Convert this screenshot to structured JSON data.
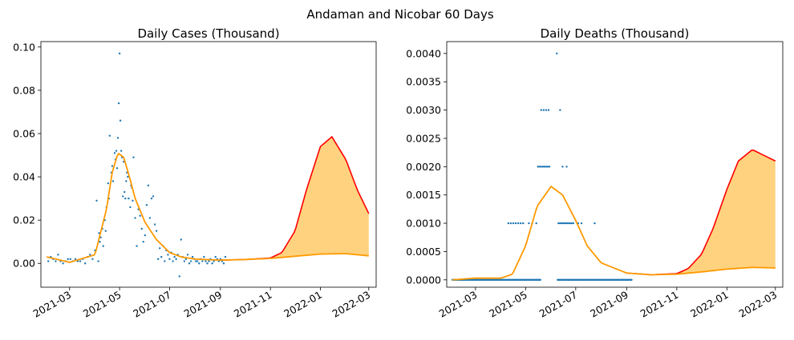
{
  "figure": {
    "title": "Andaman and Nicobar 60 Days"
  },
  "chart_data": [
    {
      "type": "scatter",
      "title": "Daily Cases (Thousand)",
      "xlabel": "",
      "ylabel": "",
      "xlim": [
        "2021-01-25",
        "2022-03-10"
      ],
      "ylim": [
        -0.011,
        0.1025
      ],
      "xticks": [
        "2021-03",
        "2021-05",
        "2021-07",
        "2021-09",
        "2021-11",
        "2022-01",
        "2022-03"
      ],
      "yticks": [
        "0.00",
        "0.02",
        "0.04",
        "0.06",
        "0.08",
        "0.10"
      ],
      "grid": false,
      "colors": {
        "points": "#1f77b4",
        "fit": "#ff9900",
        "upper": "#ff0000",
        "band": "#ffd27f"
      },
      "fit_x": [
        "2021-02-01",
        "2021-03-01",
        "2021-04-01",
        "2021-04-15",
        "2021-04-22",
        "2021-04-29",
        "2021-05-06",
        "2021-05-13",
        "2021-05-20",
        "2021-06-01",
        "2021-06-15",
        "2021-07-01",
        "2021-07-15",
        "2021-08-01",
        "2021-09-01",
        "2021-10-01",
        "2021-11-01",
        "2021-12-01",
        "2022-01-01",
        "2022-02-01",
        "2022-03-01"
      ],
      "fit_y": [
        0.003,
        0.0005,
        0.004,
        0.025,
        0.042,
        0.051,
        0.049,
        0.04,
        0.03,
        0.019,
        0.011,
        0.005,
        0.003,
        0.002,
        0.0015,
        0.0018,
        0.0023,
        0.0033,
        0.0043,
        0.0045,
        0.0035
      ],
      "upper_x": [
        "2021-09-01",
        "2021-10-01",
        "2021-11-01",
        "2021-11-15",
        "2021-12-01",
        "2021-12-15",
        "2022-01-01",
        "2022-01-15",
        "2022-02-01",
        "2022-02-15",
        "2022-03-01"
      ],
      "upper_y": [
        0.0015,
        0.0018,
        0.0025,
        0.005,
        0.015,
        0.034,
        0.054,
        0.0585,
        0.048,
        0.034,
        0.023
      ],
      "points": [
        [
          "2021-02-03",
          0.001
        ],
        [
          "2021-02-06",
          0.003
        ],
        [
          "2021-02-09",
          0.002
        ],
        [
          "2021-02-12",
          0.001
        ],
        [
          "2021-02-15",
          0.004
        ],
        [
          "2021-02-18",
          0.001
        ],
        [
          "2021-02-21",
          0.0
        ],
        [
          "2021-02-24",
          0.001
        ],
        [
          "2021-02-27",
          0.002
        ],
        [
          "2021-03-02",
          0.002
        ],
        [
          "2021-03-05",
          0.001
        ],
        [
          "2021-03-08",
          0.002
        ],
        [
          "2021-03-11",
          0.001
        ],
        [
          "2021-03-14",
          0.001
        ],
        [
          "2021-03-17",
          0.002
        ],
        [
          "2021-03-20",
          0.0
        ],
        [
          "2021-03-23",
          0.003
        ],
        [
          "2021-03-26",
          0.004
        ],
        [
          "2021-03-29",
          0.002
        ],
        [
          "2021-04-01",
          0.006
        ],
        [
          "2021-04-03",
          0.029
        ],
        [
          "2021-04-05",
          0.001
        ],
        [
          "2021-04-06",
          0.014
        ],
        [
          "2021-04-07",
          0.01
        ],
        [
          "2021-04-08",
          0.012
        ],
        [
          "2021-04-10",
          0.016
        ],
        [
          "2021-04-11",
          0.008
        ],
        [
          "2021-04-13",
          0.02
        ],
        [
          "2021-04-14",
          0.015
        ],
        [
          "2021-04-15",
          0.026
        ],
        [
          "2021-04-17",
          0.037
        ],
        [
          "2021-04-18",
          0.03
        ],
        [
          "2021-04-19",
          0.059
        ],
        [
          "2021-04-21",
          0.042
        ],
        [
          "2021-04-22",
          0.045
        ],
        [
          "2021-04-23",
          0.038
        ],
        [
          "2021-04-25",
          0.051
        ],
        [
          "2021-04-26",
          0.048
        ],
        [
          "2021-04-27",
          0.052
        ],
        [
          "2021-04-28",
          0.044
        ],
        [
          "2021-04-29",
          0.058
        ],
        [
          "2021-04-30",
          0.074
        ],
        [
          "2021-05-01",
          0.097
        ],
        [
          "2021-05-02",
          0.066
        ],
        [
          "2021-05-03",
          0.052
        ],
        [
          "2021-05-04",
          0.049
        ],
        [
          "2021-05-05",
          0.031
        ],
        [
          "2021-05-06",
          0.047
        ],
        [
          "2021-05-07",
          0.033
        ],
        [
          "2021-05-08",
          0.03
        ],
        [
          "2021-05-09",
          0.038
        ],
        [
          "2021-05-10",
          0.042
        ],
        [
          "2021-05-11",
          0.04
        ],
        [
          "2021-05-12",
          0.03
        ],
        [
          "2021-05-14",
          0.026
        ],
        [
          "2021-05-15",
          0.036
        ],
        [
          "2021-05-16",
          0.035
        ],
        [
          "2021-05-17",
          0.029
        ],
        [
          "2021-05-18",
          0.049
        ],
        [
          "2021-05-20",
          0.021
        ],
        [
          "2021-05-22",
          0.008
        ],
        [
          "2021-05-24",
          0.025
        ],
        [
          "2021-05-26",
          0.022
        ],
        [
          "2021-05-28",
          0.016
        ],
        [
          "2021-05-30",
          0.01
        ],
        [
          "2021-06-01",
          0.013
        ],
        [
          "2021-06-03",
          0.027
        ],
        [
          "2021-06-05",
          0.036
        ],
        [
          "2021-06-07",
          0.021
        ],
        [
          "2021-06-09",
          0.03
        ],
        [
          "2021-06-11",
          0.031
        ],
        [
          "2021-06-13",
          0.018
        ],
        [
          "2021-06-15",
          0.015
        ],
        [
          "2021-06-17",
          0.002
        ],
        [
          "2021-06-19",
          0.007
        ],
        [
          "2021-06-21",
          0.003
        ],
        [
          "2021-06-23",
          0.008
        ],
        [
          "2021-06-25",
          0.001
        ],
        [
          "2021-06-27",
          0.006
        ],
        [
          "2021-06-29",
          0.004
        ],
        [
          "2021-07-01",
          0.002
        ],
        [
          "2021-07-03",
          0.005
        ],
        [
          "2021-07-05",
          0.001
        ],
        [
          "2021-07-07",
          0.003
        ],
        [
          "2021-07-09",
          0.002
        ],
        [
          "2021-07-11",
          0.004
        ],
        [
          "2021-07-13",
          -0.006
        ],
        [
          "2021-07-15",
          0.011
        ],
        [
          "2021-07-17",
          0.003
        ],
        [
          "2021-07-19",
          0.001
        ],
        [
          "2021-07-21",
          0.002
        ],
        [
          "2021-07-23",
          0.004
        ],
        [
          "2021-07-25",
          0.0
        ],
        [
          "2021-07-27",
          0.001
        ],
        [
          "2021-07-29",
          0.003
        ],
        [
          "2021-07-31",
          0.002
        ],
        [
          "2021-08-02",
          0.001
        ],
        [
          "2021-08-04",
          0.001
        ],
        [
          "2021-08-06",
          0.0
        ],
        [
          "2021-08-08",
          0.002
        ],
        [
          "2021-08-10",
          0.001
        ],
        [
          "2021-08-12",
          0.003
        ],
        [
          "2021-08-14",
          0.001
        ],
        [
          "2021-08-16",
          0.0
        ],
        [
          "2021-08-18",
          0.001
        ],
        [
          "2021-08-20",
          0.002
        ],
        [
          "2021-08-22",
          0.0
        ],
        [
          "2021-08-24",
          0.001
        ],
        [
          "2021-08-26",
          0.003
        ],
        [
          "2021-08-28",
          0.002
        ],
        [
          "2021-08-30",
          0.001
        ],
        [
          "2021-09-01",
          0.002
        ],
        [
          "2021-09-03",
          0.001
        ],
        [
          "2021-09-05",
          0.0
        ],
        [
          "2021-09-07",
          0.003
        ]
      ]
    },
    {
      "type": "scatter",
      "title": "Daily Deaths (Thousand)",
      "xlabel": "",
      "ylabel": "",
      "xlim": [
        "2021-01-25",
        "2022-03-10"
      ],
      "ylim": [
        -0.00013,
        0.00421
      ],
      "xticks": [
        "2021-03",
        "2021-05",
        "2021-07",
        "2021-09",
        "2021-11",
        "2022-01",
        "2022-03"
      ],
      "yticks": [
        "0.0000",
        "0.0005",
        "0.0010",
        "0.0015",
        "0.0020",
        "0.0025",
        "0.0030",
        "0.0035",
        "0.0040"
      ],
      "grid": false,
      "colors": {
        "points": "#1f77b4",
        "fit": "#ff9900",
        "upper": "#ff0000",
        "band": "#ffd27f"
      },
      "fit_x": [
        "2021-02-01",
        "2021-03-01",
        "2021-04-01",
        "2021-04-15",
        "2021-05-01",
        "2021-05-15",
        "2021-06-01",
        "2021-06-15",
        "2021-07-01",
        "2021-07-15",
        "2021-08-01",
        "2021-09-01",
        "2021-10-01",
        "2021-11-01",
        "2021-12-01",
        "2022-01-01",
        "2022-02-01",
        "2022-03-01"
      ],
      "fit_y": [
        0.0,
        3e-05,
        3e-05,
        0.0001,
        0.0006,
        0.0013,
        0.00165,
        0.0015,
        0.00105,
        0.0006,
        0.0003,
        0.00012,
        9e-05,
        0.0001,
        0.00014,
        0.00019,
        0.00022,
        0.00021
      ],
      "upper_x": [
        "2021-09-01",
        "2021-10-01",
        "2021-11-01",
        "2021-11-15",
        "2021-12-01",
        "2021-12-15",
        "2022-01-01",
        "2022-01-15",
        "2022-02-01",
        "2022-02-15",
        "2022-03-01"
      ],
      "upper_y": [
        0.00012,
        9e-05,
        0.00011,
        0.0002,
        0.00045,
        0.0009,
        0.0016,
        0.0021,
        0.0023,
        0.0022,
        0.0021
      ],
      "point_groups": [
        {
          "from": "2021-02-01",
          "to": "2021-09-07",
          "step": 1,
          "y": 0.0,
          "skip": [
            [
              "2021-05-20",
              "2021-06-08"
            ]
          ]
        },
        {
          "dates": [
            "2021-04-10",
            "2021-04-13",
            "2021-04-16",
            "2021-04-19",
            "2021-04-22",
            "2021-04-25",
            "2021-04-28",
            "2021-05-05",
            "2021-05-09",
            "2021-05-14",
            "2021-06-10",
            "2021-06-12",
            "2021-06-14",
            "2021-06-16",
            "2021-06-18",
            "2021-06-20",
            "2021-06-22",
            "2021-06-24",
            "2021-06-26",
            "2021-06-28",
            "2021-07-04",
            "2021-07-08",
            "2021-07-24"
          ],
          "y": 0.001
        },
        {
          "dates": [
            "2021-05-16",
            "2021-05-18",
            "2021-05-20",
            "2021-05-22",
            "2021-05-24",
            "2021-05-26",
            "2021-05-28",
            "2021-05-30",
            "2021-06-15",
            "2021-06-20"
          ],
          "y": 0.002
        },
        {
          "dates": [
            "2021-05-20",
            "2021-05-23",
            "2021-05-26",
            "2021-05-29",
            "2021-06-12"
          ],
          "y": 0.003
        },
        {
          "dates": [
            "2021-06-08"
          ],
          "y": 0.004
        }
      ]
    }
  ]
}
